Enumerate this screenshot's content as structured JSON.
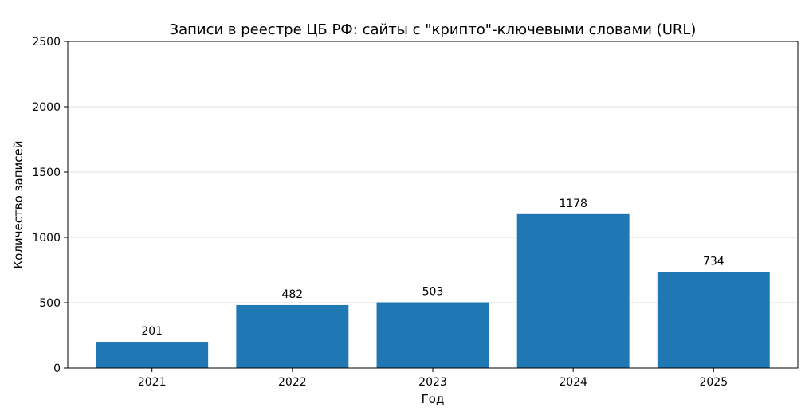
{
  "chart_data": {
    "type": "bar",
    "title": "Записи в реестре ЦБ РФ: сайты с \"крипто\"-ключевыми словами (URL)",
    "xlabel": "Год",
    "ylabel": "Количество записей",
    "categories": [
      "2021",
      "2022",
      "2023",
      "2024",
      "2025"
    ],
    "values": [
      201,
      482,
      503,
      1178,
      734
    ],
    "data_labels": [
      "201",
      "482",
      "503",
      "1178",
      "734"
    ],
    "ylim": [
      0,
      2500
    ],
    "yticks": [
      0,
      500,
      1000,
      1500,
      2000,
      2500
    ],
    "ytick_labels": [
      "0",
      "500",
      "1000",
      "1500",
      "2000",
      "2500"
    ],
    "grid": "y",
    "legend": "none",
    "bar_color": "#1f77b4"
  }
}
